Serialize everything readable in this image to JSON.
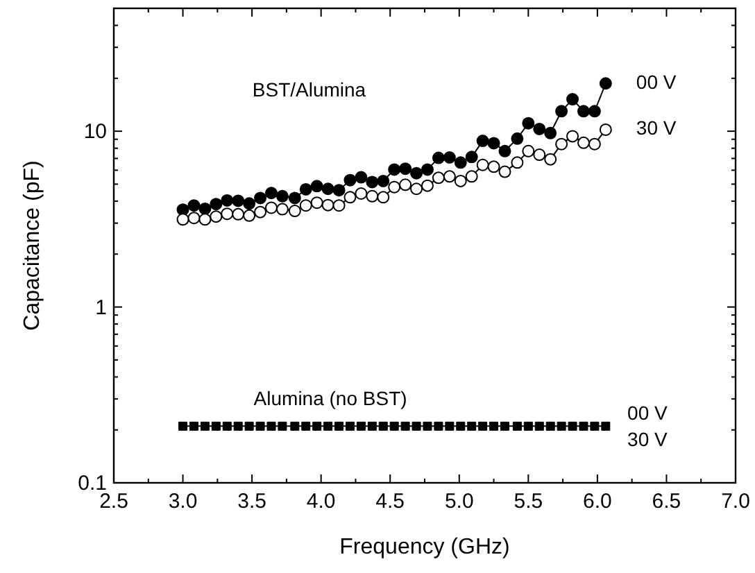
{
  "chart_data": {
    "type": "line",
    "xlabel": "Frequency (GHz)",
    "ylabel": "Capacitance (pF)",
    "log": "y",
    "xlim": [
      2.5,
      7.0
    ],
    "ylim": [
      0.1,
      50
    ],
    "xticks": [
      {
        "value": 2.5,
        "label": "2.5"
      },
      {
        "value": 2.75,
        "label": null
      },
      {
        "value": 3,
        "label": "3.0"
      },
      {
        "value": 3.25,
        "label": null
      },
      {
        "value": 3.5,
        "label": "3.5"
      },
      {
        "value": 3.75,
        "label": null
      },
      {
        "value": 4,
        "label": "4.0"
      },
      {
        "value": 4.25,
        "label": null
      },
      {
        "value": 4.5,
        "label": "4.5"
      },
      {
        "value": 4.75,
        "label": null
      },
      {
        "value": 5,
        "label": "5.0"
      },
      {
        "value": 5.25,
        "label": null
      },
      {
        "value": 5.5,
        "label": "5.5"
      },
      {
        "value": 5.75,
        "label": null
      },
      {
        "value": 6,
        "label": "6.0"
      },
      {
        "value": 6.25,
        "label": null
      },
      {
        "value": 6.5,
        "label": "6.5"
      },
      {
        "value": 6.75,
        "label": null
      },
      {
        "value": 7,
        "label": "7.0"
      }
    ],
    "yticks": [
      0.1,
      {
        "value": 0.2,
        "label": null
      },
      {
        "value": 0.3,
        "label": null
      },
      {
        "value": 0.4,
        "label": null
      },
      {
        "value": 0.5,
        "label": null
      },
      {
        "value": 0.6,
        "label": null
      },
      {
        "value": 0.7,
        "label": null
      },
      {
        "value": 0.8,
        "label": null
      },
      {
        "value": 0.9,
        "label": null
      },
      1,
      {
        "value": 2,
        "label": null
      },
      {
        "value": 3,
        "label": null
      },
      {
        "value": 4,
        "label": null
      },
      {
        "value": 5,
        "label": null
      },
      {
        "value": 6,
        "label": null
      },
      {
        "value": 7,
        "label": null
      },
      {
        "value": 8,
        "label": null
      },
      {
        "value": 9,
        "label": null
      },
      10,
      {
        "value": 20,
        "label": null
      },
      {
        "value": 30,
        "label": null
      },
      {
        "value": 40,
        "label": null
      }
    ],
    "grid": false,
    "legend": "right",
    "x": [
      3.0,
      3.08,
      3.16,
      3.24,
      3.32,
      3.4,
      3.48,
      3.56,
      3.64,
      3.72,
      3.81,
      3.89,
      3.97,
      4.05,
      4.13,
      4.21,
      4.29,
      4.37,
      4.45,
      4.53,
      4.61,
      4.69,
      4.77,
      4.85,
      4.93,
      5.01,
      5.09,
      5.17,
      5.25,
      5.33,
      5.42,
      5.5,
      5.58,
      5.66,
      5.74,
      5.82,
      5.9,
      5.98,
      6.06
    ],
    "series": [
      {
        "name": "00 V",
        "color": "#000000",
        "marker": "circle",
        "values": [
          3.58,
          3.78,
          3.62,
          3.85,
          4.04,
          4.02,
          3.88,
          4.17,
          4.45,
          4.27,
          4.17,
          4.67,
          4.87,
          4.7,
          4.62,
          5.27,
          5.47,
          5.14,
          5.21,
          6.05,
          6.12,
          5.77,
          6.05,
          7.05,
          7.09,
          6.63,
          7.13,
          8.81,
          8.55,
          7.71,
          9.08,
          11.1,
          10.3,
          9.76,
          13.0,
          15.2,
          13.0,
          13.0,
          18.7
        ]
      },
      {
        "name": "30 V",
        "color": "#ffffff",
        "marker": "circle",
        "values": [
          3.15,
          3.21,
          3.15,
          3.27,
          3.39,
          3.37,
          3.31,
          3.47,
          3.67,
          3.6,
          3.52,
          3.78,
          3.92,
          3.8,
          3.78,
          4.21,
          4.42,
          4.27,
          4.21,
          4.81,
          4.96,
          4.7,
          4.9,
          5.43,
          5.53,
          5.21,
          5.53,
          6.43,
          6.28,
          5.88,
          6.63,
          7.71,
          7.35,
          6.92,
          8.45,
          9.36,
          8.59,
          8.45,
          10.2
        ]
      },
      {
        "color": "#000000",
        "marker": "square",
        "values": [
          0.21,
          0.21,
          0.21,
          0.21,
          0.21,
          0.21,
          0.21,
          0.21,
          0.21,
          0.21,
          0.21,
          0.21,
          0.21,
          0.21,
          0.21,
          0.21,
          0.21,
          0.21,
          0.21,
          0.21,
          0.21,
          0.21,
          0.21,
          0.21,
          0.21,
          0.21,
          0.21,
          0.21,
          0.21,
          0.21,
          0.21,
          0.21,
          0.21,
          0.21,
          0.21,
          0.21,
          0.21,
          0.21,
          0.21
        ]
      }
    ],
    "annotations": [
      "BST/Alumina",
      "Alumina (no BST)",
      "00 V",
      "30 V"
    ]
  }
}
